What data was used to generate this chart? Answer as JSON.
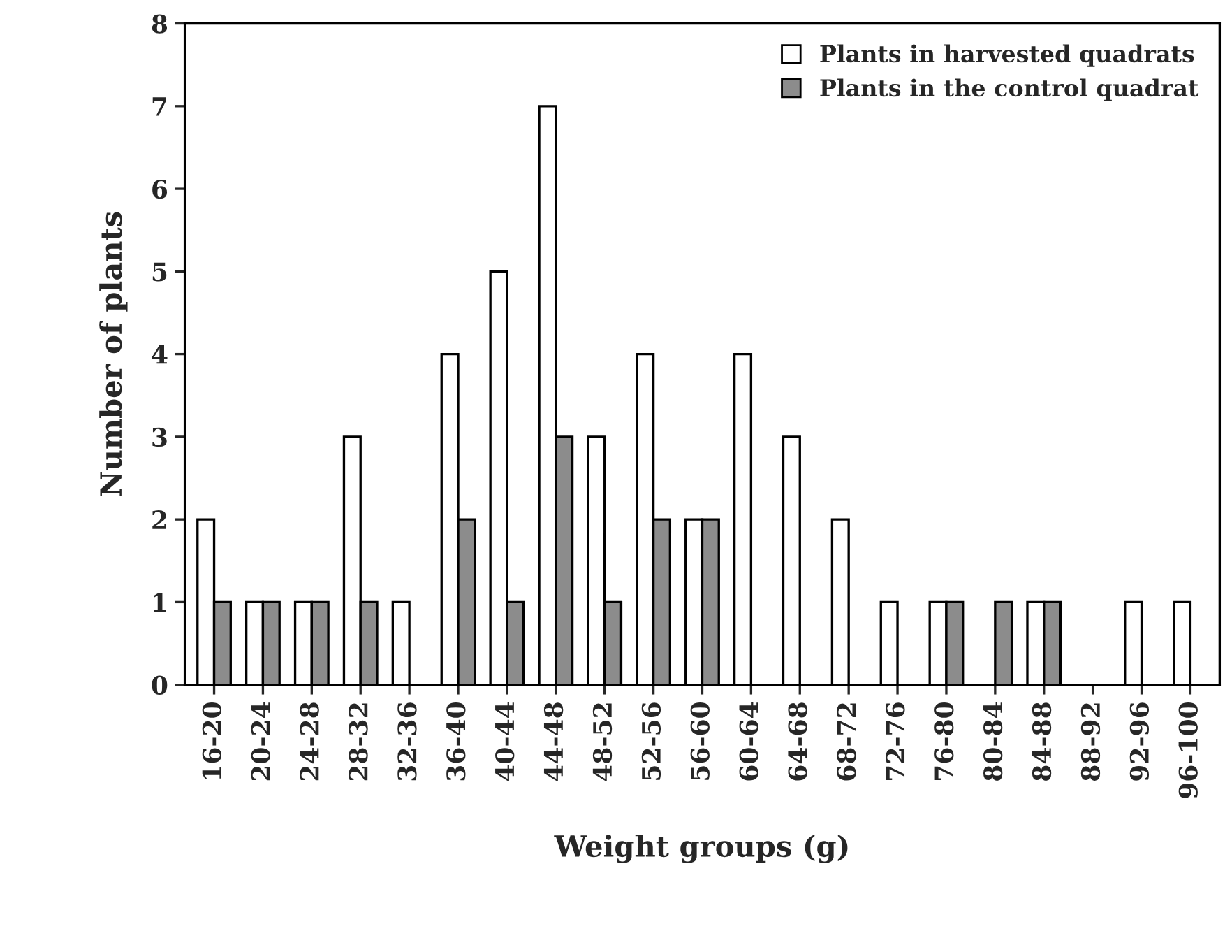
{
  "chart_data": {
    "type": "bar",
    "xlabel": "Weight groups (g)",
    "ylabel": "Number of plants",
    "categories": [
      "16-20",
      "20-24",
      "24-28",
      "28-32",
      "32-36",
      "36-40",
      "40-44",
      "44-48",
      "48-52",
      "52-56",
      "56-60",
      "60-64",
      "64-68",
      "68-72",
      "72-76",
      "76-80",
      "80-84",
      "84-88",
      "88-92",
      "92-96",
      "96-100"
    ],
    "series": [
      {
        "name": "Plants in harvested quadrats",
        "color": "#ffffff",
        "values": [
          2,
          1,
          1,
          3,
          1,
          4,
          5,
          7,
          3,
          4,
          2,
          4,
          3,
          2,
          1,
          1,
          0,
          1,
          0,
          1,
          1
        ]
      },
      {
        "name": "Plants in the control quadrat",
        "color": "#8c8c8c",
        "values": [
          1,
          1,
          1,
          1,
          0,
          2,
          1,
          3,
          1,
          2,
          2,
          0,
          0,
          0,
          0,
          1,
          1,
          1,
          0,
          0,
          0
        ]
      }
    ],
    "ylim": [
      0,
      8
    ],
    "yticks": [
      0,
      1,
      2,
      3,
      4,
      5,
      6,
      7,
      8
    ],
    "grid": false,
    "legend": "top right"
  }
}
